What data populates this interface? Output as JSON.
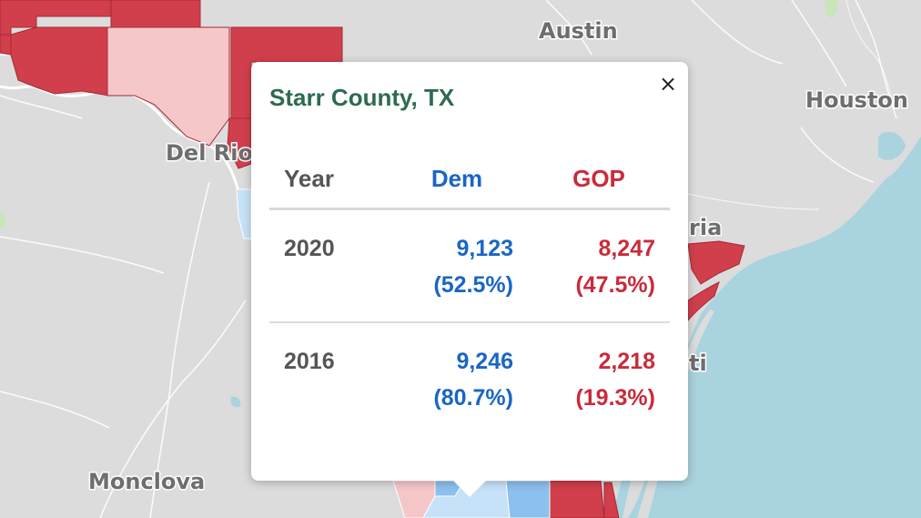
{
  "map": {
    "cities": [
      "Austin",
      "Houston",
      "Del Rio",
      "Monclova",
      "ria",
      "ti"
    ],
    "colors": {
      "land": "#dcdcdc",
      "water": "#a9d3df",
      "gop_strong": "#d13f4c",
      "gop_light": "#f5c7c9",
      "dem_light": "#c6e2f8",
      "dem_mid": "#8cc0ee",
      "park_green": "#c8e6b8"
    }
  },
  "popup": {
    "title": "Starr County, TX",
    "close_label": "×",
    "columns": {
      "year": "Year",
      "dem": "Dem",
      "gop": "GOP"
    },
    "rows": [
      {
        "year": "2020",
        "dem_votes": "9,123",
        "dem_pct": "(52.5%)",
        "gop_votes": "8,247",
        "gop_pct": "(47.5%)"
      },
      {
        "year": "2016",
        "dem_votes": "9,246",
        "dem_pct": "(80.7%)",
        "gop_votes": "2,218",
        "gop_pct": "(19.3%)"
      }
    ]
  }
}
